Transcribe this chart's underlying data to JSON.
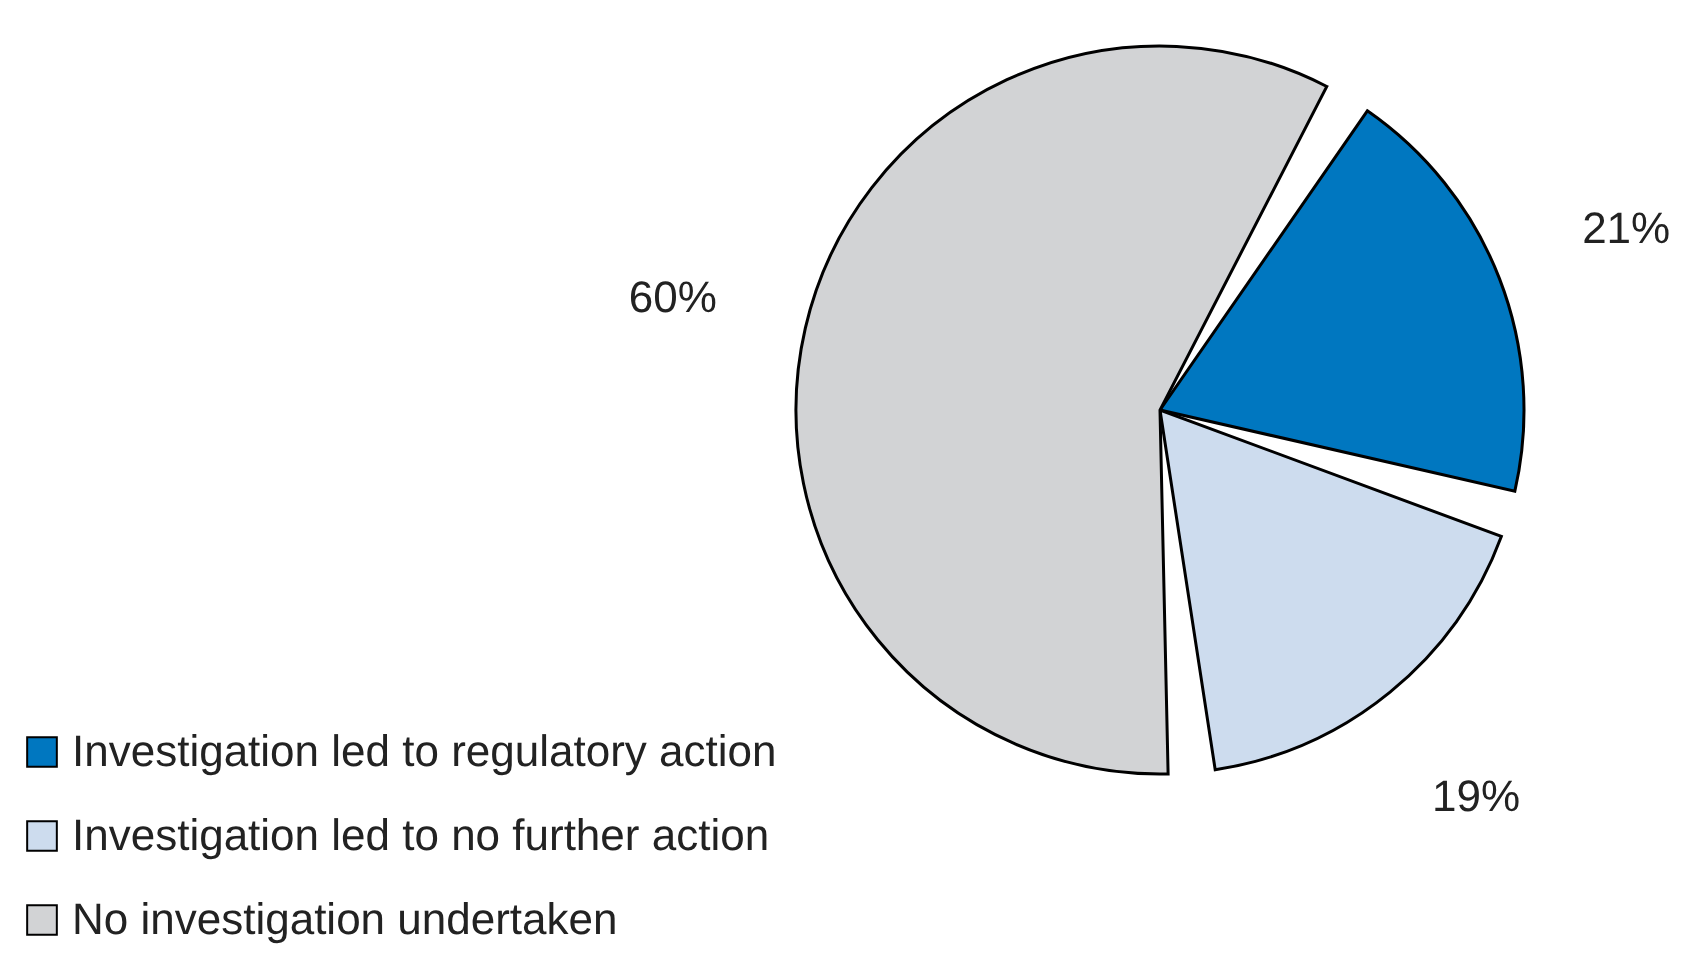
{
  "chart_data": {
    "type": "pie",
    "categories": [
      "Investigation led to regulatory action",
      "Investigation led to no further action",
      "No investigation undertaken"
    ],
    "values": [
      21,
      19,
      60
    ],
    "colors": [
      "#0077c0",
      "#cddcee",
      "#d2d3d5"
    ],
    "value_labels": [
      "21%",
      "19%",
      "60%"
    ],
    "legend": "bottom left"
  }
}
